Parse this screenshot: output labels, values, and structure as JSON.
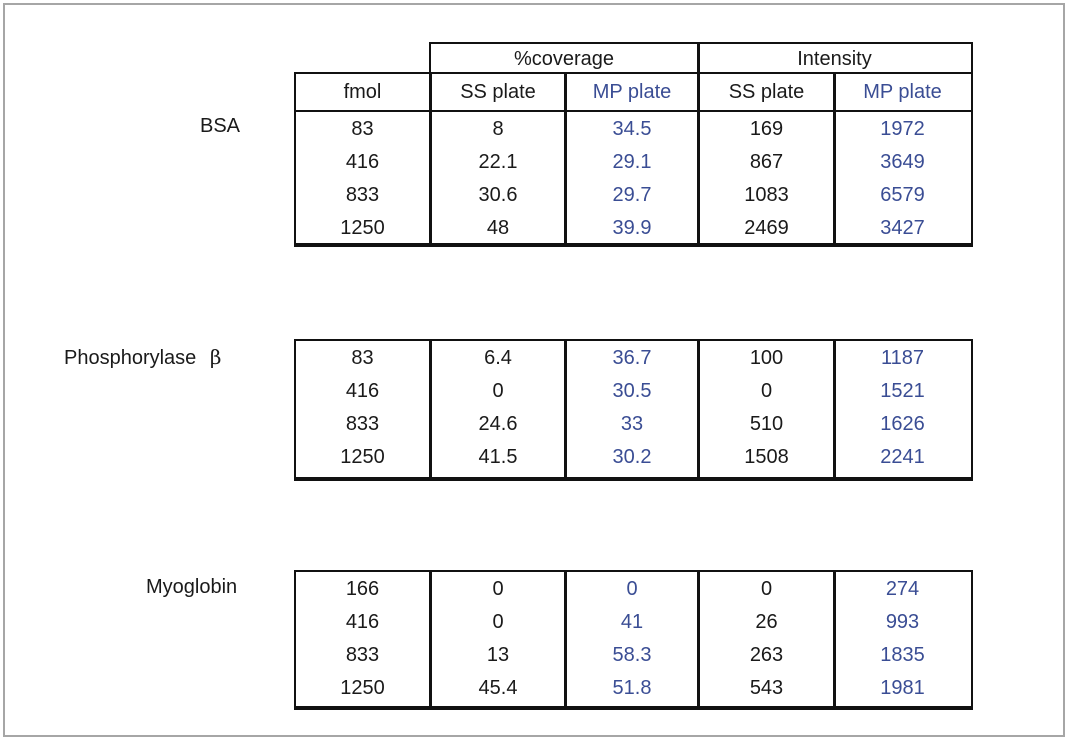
{
  "header": {
    "groups": [
      "%coverage",
      "Intensity"
    ],
    "columns": [
      "fmol",
      "SS plate",
      "MP plate",
      "SS plate",
      "MP plate"
    ]
  },
  "tables": [
    {
      "protein": "BSA",
      "rows": [
        [
          "83",
          "8",
          "34.5",
          "169",
          "1972"
        ],
        [
          "416",
          "22.1",
          "29.1",
          "867",
          "3649"
        ],
        [
          "833",
          "30.6",
          "29.7",
          "1083",
          "6579"
        ],
        [
          "1250",
          "48",
          "39.9",
          "2469",
          "3427"
        ]
      ]
    },
    {
      "protein": "Phosphorylase",
      "protein_symbol": "β",
      "rows": [
        [
          "83",
          "6.4",
          "36.7",
          "100",
          "1187"
        ],
        [
          "416",
          "0",
          "30.5",
          "0",
          "1521"
        ],
        [
          "833",
          "24.6",
          "33",
          "510",
          "1626"
        ],
        [
          "1250",
          "41.5",
          "30.2",
          "1508",
          "2241"
        ]
      ]
    },
    {
      "protein": "Myoglobin",
      "rows": [
        [
          "166",
          "0",
          "0",
          "0",
          "274"
        ],
        [
          "416",
          "0",
          "41",
          "26",
          "993"
        ],
        [
          "833",
          "13",
          "58.3",
          "263",
          "1835"
        ],
        [
          "1250",
          "45.4",
          "51.8",
          "543",
          "1981"
        ]
      ]
    }
  ],
  "colors": {
    "mp_plate": "#3a4d94",
    "text": "#1a1a1a",
    "border": "#111111",
    "frame": "#a6a6a6"
  }
}
